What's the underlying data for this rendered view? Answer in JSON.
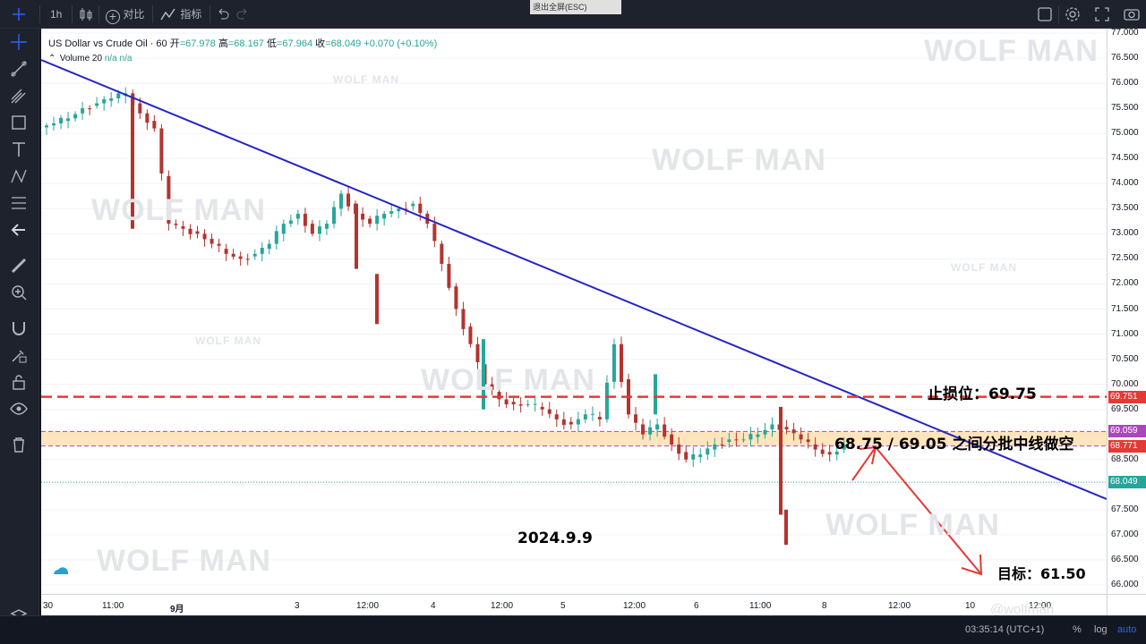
{
  "toolbar": {
    "interval": "1h",
    "compare_label": "对比",
    "indicators_label": "指标",
    "exit_fullscreen": "退出全屏(ESC)"
  },
  "legend": {
    "symbol": "US Dollar vs Crude Oil · 60",
    "open_label": "开",
    "open": "=67.978",
    "high_label": "高",
    "high": "=68.167",
    "low_label": "低",
    "low": "=67.964",
    "close_label": "收",
    "close": "=68.049",
    "change": "+0.070 (+0.10%)",
    "volume": "Volume 20",
    "volume_vals": "n/a  n/a"
  },
  "watermark": "WOLF MAN",
  "annotations": {
    "stop_loss": "止损位：69.75",
    "entry_zone": "68.75 / 69.05 之间分批中线做空",
    "target": "目标：61.50",
    "date": "2024.9.9"
  },
  "price_axis": {
    "ticks": [
      "77.000",
      "76.500",
      "76.000",
      "75.500",
      "75.000",
      "74.500",
      "74.000",
      "73.500",
      "73.000",
      "72.500",
      "72.000",
      "71.500",
      "71.000",
      "70.500",
      "70.000",
      "69.500",
      "69.000",
      "68.500",
      "68.000",
      "67.500",
      "67.000",
      "66.500",
      "66.000"
    ],
    "tags": [
      {
        "label": "69.751",
        "value": 69.751,
        "color": "#e53935"
      },
      {
        "label": "69.059",
        "value": 69.059,
        "color": "#ab47bc"
      },
      {
        "label": "68.771",
        "value": 68.771,
        "color": "#e53935"
      },
      {
        "label": "68.049",
        "value": 68.049,
        "color": "#26a69a"
      }
    ]
  },
  "time_axis": {
    "labels": [
      "30",
      "11:00",
      "9月",
      "3",
      "12:00",
      "4",
      "12:00",
      "5",
      "12:00",
      "6",
      "11:00",
      "8",
      "12:00",
      "10",
      "12:00"
    ]
  },
  "bottom": {
    "clock": "03:35:14 (UTC+1)",
    "percent": "%",
    "log": "log",
    "auto": "auto",
    "social": "@wolfman"
  },
  "colors": {
    "up": "#26a69a",
    "down": "#b2342f",
    "trendline": "#2525c8",
    "stop_line": "#e53935",
    "zone_fill": "#ffe0b2",
    "arrow": "#e53935"
  },
  "chart_data": {
    "type": "candlestick",
    "symbol": "US Dollar vs Crude Oil",
    "interval": "60",
    "ylim": [
      66.0,
      77.0
    ],
    "x": [
      "30",
      "11:00",
      "9月",
      "3",
      "12:00",
      "4",
      "12:00",
      "5",
      "12:00",
      "6",
      "11:00",
      "8",
      "12:00",
      "10",
      "12:00"
    ],
    "lines": [
      {
        "name": "止损位",
        "value": 69.75
      },
      {
        "name": "zone_low",
        "value": 68.771
      },
      {
        "name": "zone_high",
        "value": 69.059
      },
      {
        "name": "last",
        "value": 68.049
      }
    ],
    "target": 61.5,
    "close_path": [
      75.2,
      75.3,
      75.5,
      75.6,
      75.7,
      75.8,
      75.4,
      75.1,
      73.2,
      73.1,
      73.0,
      72.8,
      72.6,
      72.5,
      72.6,
      72.8,
      73.2,
      73.4,
      73.0,
      73.2,
      73.8,
      73.4,
      73.2,
      73.4,
      73.5,
      73.6,
      73.2,
      72.4,
      71.5,
      70.8,
      70.0,
      69.7,
      69.6,
      69.6,
      69.5,
      69.3,
      69.2,
      69.4,
      69.3,
      70.8,
      69.4,
      69.0,
      69.2,
      68.8,
      68.5,
      68.6,
      68.8,
      68.9,
      68.9,
      69.0,
      69.2,
      69.1,
      68.9,
      68.7,
      68.6,
      68.8,
      68.8,
      68.7,
      68.7,
      68.8,
      68.9,
      68.7,
      68.9,
      69.5,
      67.9,
      67.2,
      67.1,
      67.5,
      67.7,
      67.8,
      67.9,
      68.0,
      68.049
    ]
  }
}
